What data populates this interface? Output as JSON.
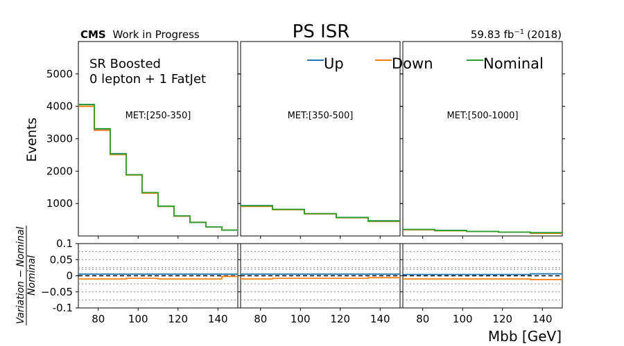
{
  "header": {
    "cms_bold": "CMS",
    "cms_rest": "Work in Progress",
    "title": "PS ISR",
    "lumi_value": "59.83 fb",
    "lumi_exp": "−1",
    "lumi_year": "(2018)"
  },
  "region_text": [
    "SR Boosted",
    "0 lepton + 1 FatJet"
  ],
  "colors": {
    "up": "#1f77b4",
    "down": "#ff7f0e",
    "nominal": "#2ca02c",
    "title": "#ff0000",
    "met_label": "#0000ff"
  },
  "chart_data": {
    "type": "line",
    "drawstyle": "steps",
    "xlabel": "Mbb [GeV]",
    "ylabel": "Events",
    "ratio_ylabel_num": "Variation − Nominal",
    "ratio_ylabel_den": "Nominal",
    "xlim": [
      70,
      150
    ],
    "ylim": [
      0,
      6000
    ],
    "ratio_ylim": [
      -0.1,
      0.1
    ],
    "x_ticks": [
      80,
      100,
      120,
      140
    ],
    "y_ticks": [
      1000,
      2000,
      3000,
      4000,
      5000
    ],
    "ratio_ticks": [
      0.1,
      0.05,
      0,
      -0.05,
      -0.1
    ],
    "ratio_tick_labels": [
      "0.1",
      "0.05",
      "0",
      "−0.05",
      "-0.1"
    ],
    "legend": [
      "Up",
      "Down",
      "Nominal"
    ],
    "legend_location": "top",
    "bin_edges": [
      70,
      78,
      86,
      94,
      102,
      110,
      118,
      126,
      134,
      142,
      150
    ],
    "panels": [
      {
        "label": "MET:[250-350]",
        "series": [
          {
            "name": "Up",
            "values": [
              4060,
              3300,
              2540,
              1890,
              1330,
              920,
              620,
              420,
              280,
              180
            ]
          },
          {
            "name": "Down",
            "values": [
              4000,
              3260,
              2510,
              1880,
              1320,
              910,
              610,
              420,
              280,
              180
            ]
          },
          {
            "name": "Nominal",
            "values": [
              4050,
              3310,
              2530,
              1890,
              1340,
              920,
              620,
              420,
              280,
              180
            ]
          }
        ],
        "ratio": {
          "Up": [
            0.005,
            0.005,
            0.005,
            0.005,
            0.005,
            0.005,
            0.005,
            0.005,
            0.005,
            0.005
          ],
          "Down": [
            -0.01,
            -0.01,
            -0.01,
            -0.008,
            -0.008,
            -0.01,
            -0.01,
            -0.01,
            -0.01,
            -0.002
          ]
        }
      },
      {
        "label": "MET:[350-500]",
        "series": [
          {
            "name": "Up",
            "values": [
              940,
              940,
              820,
              820,
              680,
              680,
              570,
              570,
              470,
              470
            ]
          },
          {
            "name": "Down",
            "values": [
              910,
              910,
              810,
              810,
              680,
              680,
              560,
              560,
              450,
              450
            ]
          },
          {
            "name": "Nominal",
            "values": [
              930,
              930,
              820,
              820,
              690,
              690,
              570,
              570,
              460,
              460
            ]
          }
        ],
        "ratio": {
          "Up": [
            0.005,
            0.005,
            0.005,
            0.005,
            0.005,
            0.005,
            0.005,
            0.005,
            0.005,
            0.005
          ],
          "Down": [
            -0.01,
            -0.01,
            -0.008,
            -0.008,
            -0.008,
            -0.008,
            -0.008,
            -0.008,
            -0.006,
            -0.006
          ]
        }
      },
      {
        "label": "MET:[500-1000]",
        "series": [
          {
            "name": "Up",
            "values": [
              200,
              200,
              170,
              170,
              140,
              140,
              120,
              120,
              100,
              100
            ]
          },
          {
            "name": "Down",
            "values": [
              190,
              190,
              160,
              160,
              140,
              140,
              120,
              120,
              80,
              80
            ]
          },
          {
            "name": "Nominal",
            "values": [
              200,
              200,
              170,
              170,
              140,
              140,
              120,
              120,
              100,
              100
            ]
          }
        ],
        "ratio": {
          "Up": [
            0.004,
            0.004,
            0.004,
            0.004,
            0.004,
            0.004,
            0.004,
            0.004,
            0.006,
            0.006
          ],
          "Down": [
            -0.01,
            -0.01,
            -0.01,
            -0.01,
            -0.01,
            -0.01,
            -0.01,
            -0.01,
            -0.012,
            -0.012
          ]
        }
      }
    ]
  }
}
